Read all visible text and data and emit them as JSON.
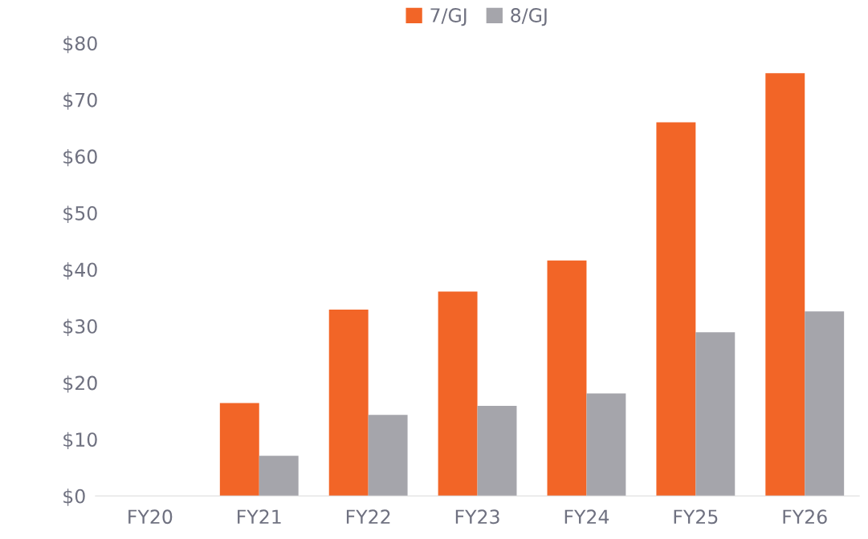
{
  "chart_data": {
    "type": "bar",
    "categories": [
      "FY20",
      "FY21",
      "FY22",
      "FY23",
      "FY24",
      "FY25",
      "FY26"
    ],
    "series": [
      {
        "name": "7/GJ",
        "color": "#f26527",
        "values": [
          null,
          16.4,
          32.9,
          36.1,
          41.6,
          66.0,
          74.7
        ]
      },
      {
        "name": "8/GJ",
        "color": "#a5a5ab",
        "values": [
          null,
          7.1,
          14.3,
          15.9,
          18.1,
          28.9,
          32.6
        ]
      }
    ],
    "ylim": [
      0,
      80
    ],
    "yticks": [
      {
        "value": 0,
        "label": "$0"
      },
      {
        "value": 10,
        "label": "$10"
      },
      {
        "value": 20,
        "label": "$20"
      },
      {
        "value": 30,
        "label": "$30"
      },
      {
        "value": 40,
        "label": "$40"
      },
      {
        "value": 50,
        "label": "$50"
      },
      {
        "value": 60,
        "label": "$60"
      },
      {
        "value": 70,
        "label": "$70"
      },
      {
        "value": 80,
        "label": "$80"
      }
    ],
    "grid": false,
    "legend": "top"
  }
}
